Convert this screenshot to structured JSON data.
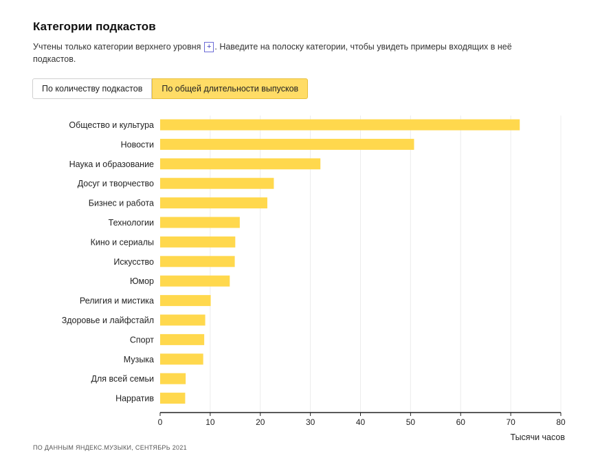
{
  "header": {
    "title": "Категории подкастов",
    "desc_part1": "Учтены только категории верхнего уровня",
    "plus_label": "+",
    "desc_part2": ". Наведите на полоску категории, чтобы увидеть примеры входящих в неё подкастов."
  },
  "tabs": [
    {
      "label": "По количеству подкастов",
      "active": false
    },
    {
      "label": "По общей длительности выпусков",
      "active": true
    }
  ],
  "colors": {
    "bar": "#ffd84d",
    "axis": "#222222",
    "grid": "#ececec",
    "active_tab": "#ffdc66"
  },
  "chart_data": {
    "type": "bar",
    "orientation": "horizontal",
    "categories": [
      "Общество и культура",
      "Новости",
      "Наука и образование",
      "Досуг и творчество",
      "Бизнес и работа",
      "Технологии",
      "Кино и сериалы",
      "Искусство",
      "Юмор",
      "Религия и мистика",
      "Здоровье и лайфстайл",
      "Спорт",
      "Музыка",
      "Для всей семьи",
      "Нарратив"
    ],
    "values": [
      71.8,
      50.7,
      32.0,
      22.7,
      21.4,
      15.9,
      15.0,
      14.9,
      13.9,
      10.1,
      9.0,
      8.8,
      8.6,
      5.1,
      5.0
    ],
    "xlim": [
      0,
      80
    ],
    "xticks": [
      0,
      10,
      20,
      30,
      40,
      50,
      60,
      70,
      80
    ],
    "xlabel": "Тысячи часов",
    "ylabel": "",
    "grid": true
  },
  "footer": {
    "source": "ПО ДАННЫМ ЯНДЕКС.МУЗЫКИ, СЕНТЯБРЬ 2021"
  }
}
